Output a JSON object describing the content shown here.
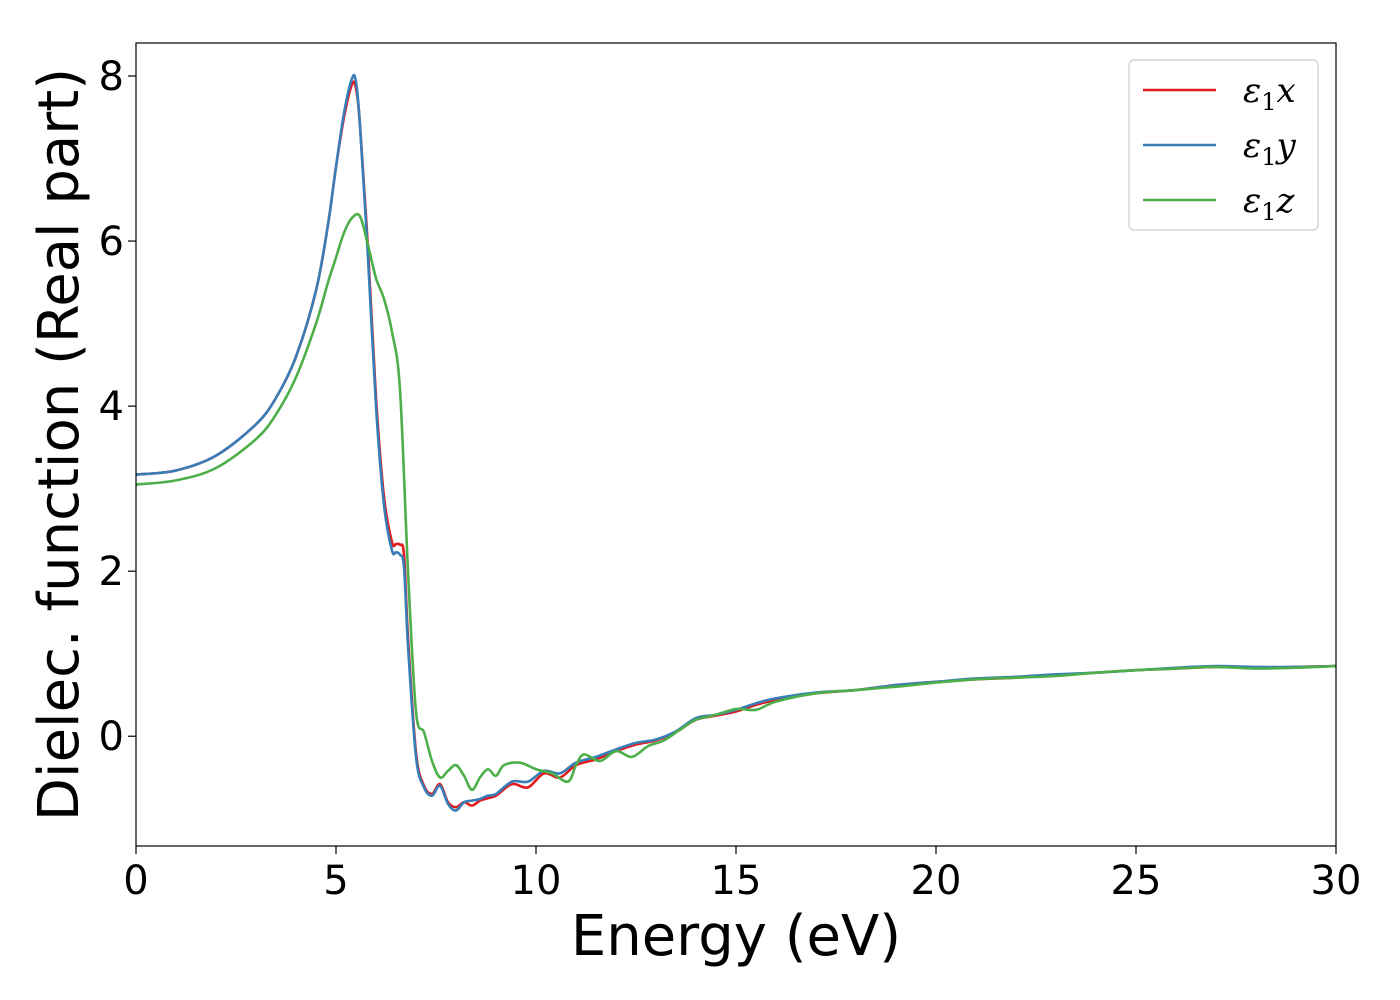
{
  "chart_data": {
    "type": "line",
    "xlabel": "Energy (eV)",
    "ylabel": "Dielec. function (Real part)",
    "xlim": [
      0,
      30
    ],
    "ylim": [
      -1.33,
      8.4
    ],
    "xticks": [
      0,
      5,
      10,
      15,
      20,
      25,
      30
    ],
    "yticks": [
      0,
      2,
      4,
      6,
      8
    ],
    "grid": false,
    "legend_position": "top-right",
    "series": [
      {
        "name": "ε1x",
        "legend_base": "ε",
        "legend_sub": "1",
        "legend_var": "x",
        "color": "#e41a1c",
        "x": [
          0,
          1,
          2,
          3,
          3.5,
          4,
          4.5,
          4.8,
          5.0,
          5.2,
          5.4,
          5.5,
          5.6,
          5.8,
          6.0,
          6.2,
          6.4,
          6.5,
          6.6,
          6.7,
          6.8,
          7.0,
          7.2,
          7.4,
          7.6,
          7.8,
          8.0,
          8.2,
          8.4,
          8.6,
          8.8,
          9.0,
          9.4,
          9.8,
          10.2,
          10.6,
          11.0,
          11.5,
          12.0,
          12.5,
          13.0,
          13.5,
          14.0,
          14.5,
          15.0,
          15.5,
          16.0,
          17.0,
          18.0,
          19.0,
          20.0,
          21.0,
          22.0,
          23.0,
          24.0,
          25.0,
          26.0,
          27.0,
          28.0,
          29.0,
          30.0
        ],
        "y": [
          3.17,
          3.22,
          3.4,
          3.78,
          4.1,
          4.6,
          5.4,
          6.2,
          6.9,
          7.5,
          7.9,
          7.85,
          7.4,
          5.9,
          4.1,
          2.9,
          2.35,
          2.33,
          2.32,
          2.2,
          1.2,
          -0.2,
          -0.6,
          -0.7,
          -0.58,
          -0.8,
          -0.86,
          -0.8,
          -0.84,
          -0.78,
          -0.75,
          -0.72,
          -0.58,
          -0.62,
          -0.45,
          -0.5,
          -0.35,
          -0.28,
          -0.18,
          -0.1,
          -0.05,
          0.05,
          0.2,
          0.25,
          0.3,
          0.38,
          0.44,
          0.52,
          0.56,
          0.62,
          0.66,
          0.69,
          0.71,
          0.74,
          0.77,
          0.8,
          0.82,
          0.84,
          0.83,
          0.84,
          0.85
        ]
      },
      {
        "name": "ε1y",
        "legend_base": "ε",
        "legend_sub": "1",
        "legend_var": "y",
        "color": "#377eb8",
        "x": [
          0,
          1,
          2,
          3,
          3.5,
          4,
          4.5,
          4.8,
          5.0,
          5.2,
          5.4,
          5.5,
          5.6,
          5.8,
          6.0,
          6.2,
          6.4,
          6.5,
          6.6,
          6.7,
          6.8,
          7.0,
          7.2,
          7.4,
          7.6,
          7.8,
          8.0,
          8.2,
          8.4,
          8.6,
          8.8,
          9.0,
          9.4,
          9.8,
          10.2,
          10.6,
          11.0,
          11.5,
          12.0,
          12.5,
          13.0,
          13.5,
          14.0,
          14.5,
          15.0,
          15.5,
          16.0,
          17.0,
          18.0,
          19.0,
          20.0,
          21.0,
          22.0,
          23.0,
          24.0,
          25.0,
          26.0,
          27.0,
          28.0,
          29.0,
          30.0
        ],
        "y": [
          3.17,
          3.22,
          3.4,
          3.78,
          4.1,
          4.6,
          5.4,
          6.2,
          6.9,
          7.55,
          7.97,
          7.93,
          7.4,
          5.8,
          4.0,
          2.8,
          2.25,
          2.23,
          2.2,
          2.05,
          1.1,
          -0.25,
          -0.62,
          -0.72,
          -0.6,
          -0.82,
          -0.9,
          -0.8,
          -0.78,
          -0.76,
          -0.72,
          -0.7,
          -0.55,
          -0.55,
          -0.42,
          -0.45,
          -0.32,
          -0.25,
          -0.16,
          -0.08,
          -0.04,
          0.06,
          0.22,
          0.26,
          0.32,
          0.4,
          0.46,
          0.53,
          0.56,
          0.62,
          0.66,
          0.7,
          0.72,
          0.75,
          0.77,
          0.8,
          0.83,
          0.85,
          0.84,
          0.84,
          0.85
        ]
      },
      {
        "name": "ε1z",
        "legend_base": "ε",
        "legend_sub": "1",
        "legend_var": "z",
        "color": "#4daf4a",
        "x": [
          0,
          1,
          2,
          3,
          3.5,
          4,
          4.5,
          4.8,
          5.0,
          5.2,
          5.4,
          5.6,
          5.8,
          6.0,
          6.2,
          6.4,
          6.6,
          6.8,
          7.0,
          7.2,
          7.4,
          7.6,
          7.8,
          8.0,
          8.2,
          8.4,
          8.6,
          8.8,
          9.0,
          9.2,
          9.6,
          10.0,
          10.4,
          10.8,
          11.0,
          11.2,
          11.6,
          12.0,
          12.4,
          12.8,
          13.2,
          13.6,
          14.0,
          14.5,
          15.0,
          15.5,
          16.0,
          17.0,
          18.0,
          19.0,
          20.0,
          21.0,
          22.0,
          23.0,
          24.0,
          25.0,
          26.0,
          27.0,
          28.0,
          29.0,
          30.0
        ],
        "y": [
          3.05,
          3.1,
          3.25,
          3.6,
          3.9,
          4.35,
          5.0,
          5.5,
          5.8,
          6.1,
          6.28,
          6.3,
          5.95,
          5.55,
          5.3,
          4.9,
          4.2,
          2.0,
          0.3,
          0.05,
          -0.3,
          -0.5,
          -0.42,
          -0.35,
          -0.48,
          -0.65,
          -0.5,
          -0.4,
          -0.48,
          -0.35,
          -0.32,
          -0.4,
          -0.45,
          -0.55,
          -0.35,
          -0.22,
          -0.3,
          -0.18,
          -0.25,
          -0.12,
          -0.05,
          0.08,
          0.2,
          0.26,
          0.33,
          0.32,
          0.42,
          0.52,
          0.56,
          0.6,
          0.65,
          0.69,
          0.71,
          0.73,
          0.77,
          0.8,
          0.82,
          0.84,
          0.82,
          0.83,
          0.85
        ]
      }
    ]
  }
}
